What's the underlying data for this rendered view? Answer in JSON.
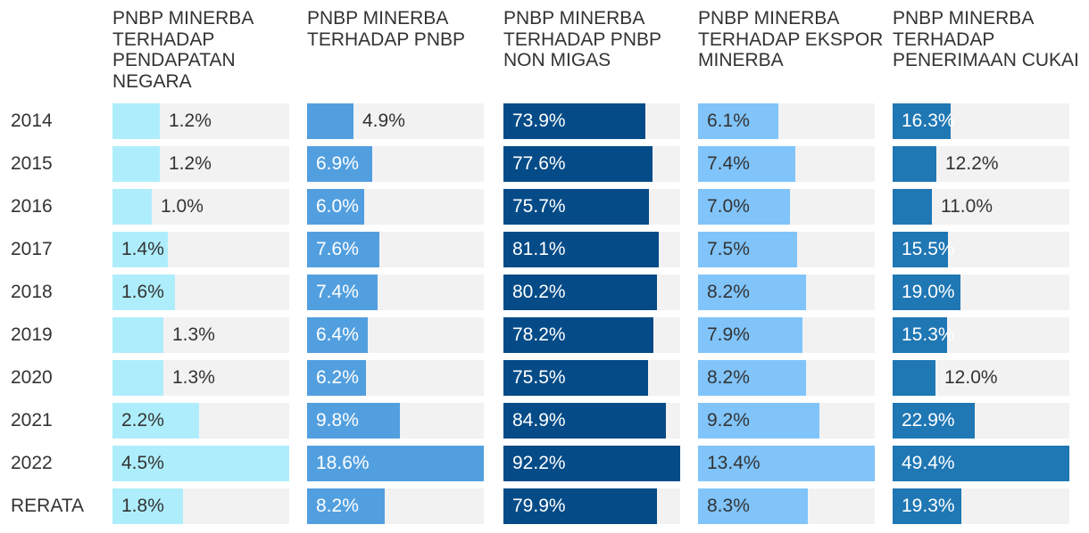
{
  "chart_data": {
    "type": "bar",
    "orientation": "horizontal",
    "layout": "small-multiples",
    "categories": [
      "2014",
      "2015",
      "2016",
      "2017",
      "2018",
      "2019",
      "2020",
      "2021",
      "2022",
      "RERATA"
    ],
    "value_format": "{v}%",
    "grid": false,
    "series": [
      {
        "name": "PNBP MINERBA TERHADAP PENDAPATAN NEGARA",
        "color": "#aeeefc",
        "values": [
          1.2,
          1.2,
          1.0,
          1.4,
          1.6,
          1.3,
          1.3,
          2.2,
          4.5,
          1.8
        ],
        "labels": [
          "1.2%",
          "1.2%",
          "1.0%",
          "1.4%",
          "1.6%",
          "1.3%",
          "1.3%",
          "2.2%",
          "4.5%",
          "1.8%"
        ],
        "xlim": [
          0,
          4.5
        ]
      },
      {
        "name": "PNBP MINERBA TERHADAP PNBP",
        "color": "#529fdf",
        "values": [
          4.9,
          6.9,
          6.0,
          7.6,
          7.4,
          6.4,
          6.2,
          9.8,
          18.6,
          8.2
        ],
        "labels": [
          "4.9%",
          "6.9%",
          "6.0%",
          "7.6%",
          "7.4%",
          "6.4%",
          "6.2%",
          "9.8%",
          "18.6%",
          "8.2%"
        ],
        "xlim": [
          0,
          18.6
        ]
      },
      {
        "name": "PNBP MINERBA TERHADAP PNBP NON MIGAS",
        "color": "#044b87",
        "values": [
          73.9,
          77.6,
          75.7,
          81.1,
          80.2,
          78.2,
          75.5,
          84.9,
          92.2,
          79.9
        ],
        "labels": [
          "73.9%",
          "77.6%",
          "75.7%",
          "81.1%",
          "80.2%",
          "78.2%",
          "75.5%",
          "84.9%",
          "92.2%",
          "79.9%"
        ],
        "xlim": [
          0,
          92.2
        ]
      },
      {
        "name": "PNBP MINERBA TERHADAP EKSPOR MINERBA",
        "color": "#80c4fa",
        "values": [
          6.1,
          7.4,
          7.0,
          7.5,
          8.2,
          7.9,
          8.2,
          9.2,
          13.4,
          8.3
        ],
        "labels": [
          "6.1%",
          "7.4%",
          "7.0%",
          "7.5%",
          "8.2%",
          "7.9%",
          "8.2%",
          "9.2%",
          "13.4%",
          "8.3%"
        ],
        "xlim": [
          0,
          13.4
        ]
      },
      {
        "name": "PNBP MINERBA TERHADAP PENERIMAAN CUKAI",
        "color": "#1f77b4",
        "values": [
          16.3,
          12.2,
          11.0,
          15.5,
          19.0,
          15.3,
          12.0,
          22.9,
          49.4,
          19.3
        ],
        "labels": [
          "16.3%",
          "12.2%",
          "11.0%",
          "15.5%",
          "19.0%",
          "15.3%",
          "12.0%",
          "22.9%",
          "49.4%",
          "19.3%"
        ],
        "xlim": [
          0,
          49.4
        ]
      }
    ]
  }
}
